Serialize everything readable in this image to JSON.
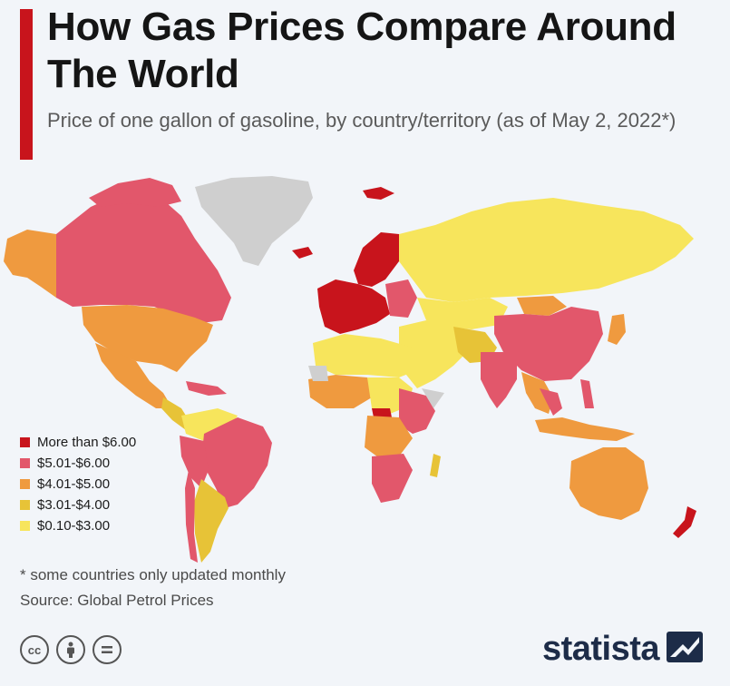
{
  "header": {
    "title": "How Gas Prices Compare Around The World",
    "subtitle": "Price of one gallon of gasoline, by country/territory (as of May 2, 2022*)"
  },
  "colors": {
    "accent": "#c8141c",
    "more_than_6": "#c8141c",
    "from_5_01_to_6": "#e2576b",
    "from_4_01_to_5": "#ef9a3f",
    "from_3_01_to_4": "#e7c337",
    "from_0_10_to_3": "#f7e55c",
    "no_data": "#cfcfcf",
    "brand": "#1d2c48"
  },
  "legend": {
    "items": [
      {
        "label": "More than $6.00",
        "color": "#c8141c"
      },
      {
        "label": "$5.01-$6.00",
        "color": "#e2576b"
      },
      {
        "label": "$4.01-$5.00",
        "color": "#ef9a3f"
      },
      {
        "label": "$3.01-$4.00",
        "color": "#e7c337"
      },
      {
        "label": "$0.10-$3.00",
        "color": "#f7e55c"
      }
    ]
  },
  "footer": {
    "note": "* some countries only updated monthly",
    "source": "Source: Global Petrol Prices",
    "license_icons": [
      "cc-icon",
      "attribution-icon",
      "no-derivatives-icon"
    ],
    "brand": "statista"
  }
}
